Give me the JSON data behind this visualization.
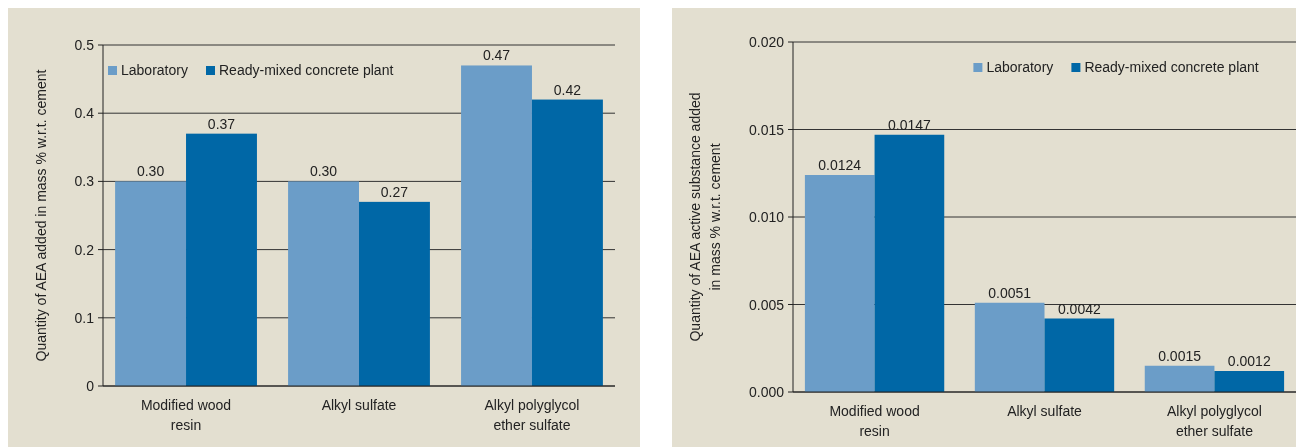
{
  "chart_data": [
    {
      "type": "bar",
      "ylabel": "Quantity of AEA added in mass % w.r.t. cement",
      "categories": [
        "Modified wood resin",
        "Alkyl sulfate",
        "Alkyl polyglycol ether sulfate"
      ],
      "series": [
        {
          "name": "Laboratory",
          "color": "#6b9dc8",
          "values": [
            0.3,
            0.3,
            0.47
          ],
          "value_labels": [
            "0.30",
            "0.30",
            "0.47"
          ]
        },
        {
          "name": "Ready-mixed concrete plant",
          "color": "#0067a6",
          "values": [
            0.37,
            0.27,
            0.42
          ],
          "value_labels": [
            "0.37",
            "0.27",
            "0.42"
          ]
        }
      ],
      "ylim": [
        0,
        0.5
      ],
      "yticks": [
        0,
        0.1,
        0.2,
        0.3,
        0.4,
        0.5
      ],
      "grid": "y",
      "legend": "top left"
    },
    {
      "type": "bar",
      "ylabel": "Quantity of AEA active substance added in mass % w.r.t. cement",
      "categories": [
        "Modified wood resin",
        "Alkyl sulfate",
        "Alkyl polyglycol ether sulfate"
      ],
      "series": [
        {
          "name": "Laboratory",
          "color": "#6b9dc8",
          "values": [
            0.0124,
            0.0051,
            0.0015
          ]
        },
        {
          "name": "Ready-mixed concrete plant",
          "color": "#0067a6",
          "values": [
            0.0147,
            0.0042,
            0.0012
          ]
        }
      ],
      "data_labels": true,
      "ylim": [
        0,
        0.02
      ],
      "yticks": [
        {
          "value": 0,
          "label": "0.000"
        },
        {
          "value": 0.005,
          "label": "0.005"
        },
        {
          "value": 0.01,
          "label": "0.010"
        },
        {
          "value": 0.015,
          "label": "0.015"
        },
        {
          "value": 0.02,
          "label": "0.020"
        }
      ],
      "grid": "y",
      "legend": "top right"
    }
  ]
}
